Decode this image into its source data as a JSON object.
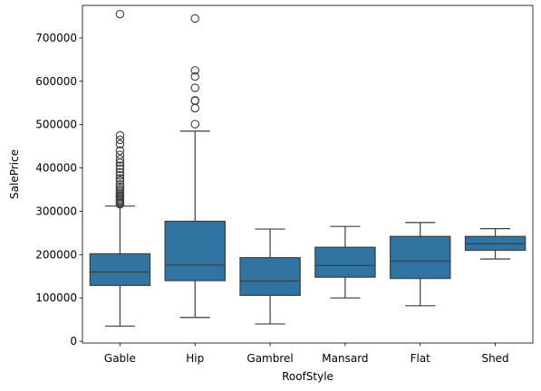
{
  "chart_data": {
    "type": "box",
    "title": "",
    "xlabel": "RoofStyle",
    "ylabel": "SalePrice",
    "ylim": [
      -4000,
      775000
    ],
    "yticks": [
      0,
      100000,
      200000,
      300000,
      400000,
      500000,
      600000,
      700000
    ],
    "ytick_labels": [
      "0",
      "100000",
      "200000",
      "300000",
      "400000",
      "500000",
      "600000",
      "700000"
    ],
    "grid": false,
    "box_color": "#3274a1",
    "line_color": "#3d3d3d",
    "categories": [
      "Gable",
      "Hip",
      "Gambrel",
      "Mansard",
      "Flat",
      "Shed"
    ],
    "boxes": [
      {
        "category": "Gable",
        "whisker_low": 35000,
        "q1": 129000,
        "median": 160000,
        "q3": 202000,
        "whisker_high": 312000,
        "outliers": [
          755000,
          475000,
          465000,
          455000,
          440000,
          430000,
          420000,
          412000,
          405000,
          398000,
          390000,
          383000,
          376000,
          370000,
          362000,
          356000,
          350000,
          346000,
          342000,
          338000,
          335000,
          332000,
          328000,
          325000,
          322000,
          319000,
          316000
        ]
      },
      {
        "category": "Hip",
        "whisker_low": 55000,
        "q1": 140000,
        "median": 176000,
        "q3": 277000,
        "whisker_high": 485000,
        "outliers": [
          745000,
          625000,
          611000,
          585000,
          556000,
          555000,
          538000,
          501000
        ]
      },
      {
        "category": "Gambrel",
        "whisker_low": 40000,
        "q1": 106000,
        "median": 139000,
        "q3": 193000,
        "whisker_high": 259000,
        "outliers": []
      },
      {
        "category": "Mansard",
        "whisker_low": 100000,
        "q1": 148000,
        "median": 175000,
        "q3": 217000,
        "whisker_high": 265000,
        "outliers": []
      },
      {
        "category": "Flat",
        "whisker_low": 82000,
        "q1": 145000,
        "median": 185000,
        "q3": 242000,
        "whisker_high": 274000,
        "outliers": []
      },
      {
        "category": "Shed",
        "whisker_low": 190000,
        "q1": 210000,
        "median": 225000,
        "q3": 242000,
        "whisker_high": 260000,
        "outliers": []
      }
    ]
  }
}
